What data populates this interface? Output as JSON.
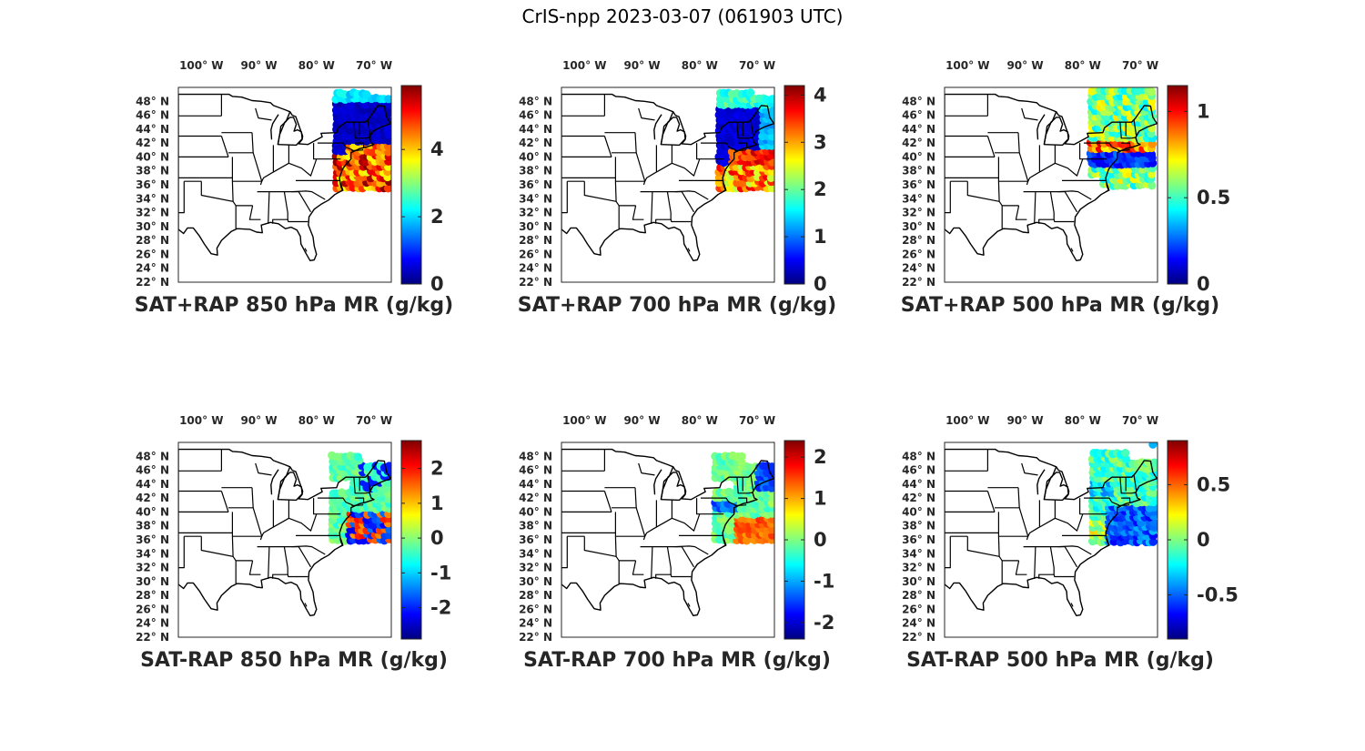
{
  "figure_title": "CrIS-npp 2023-03-07 (061903 UTC)",
  "lon_tick_labels": [
    "100° W",
    "90° W",
    "80° W",
    "70° W"
  ],
  "lat_tick_labels": [
    "48° N",
    "46° N",
    "44° N",
    "42° N",
    "40° N",
    "38° N",
    "36° N",
    "34° N",
    "32° N",
    "30° N",
    "28° N",
    "26° N",
    "24° N",
    "22° N"
  ],
  "lon_ticks": [
    -100,
    -90,
    -80,
    -70
  ],
  "lat_ticks": [
    48,
    46,
    44,
    42,
    40,
    38,
    36,
    34,
    32,
    30,
    28,
    26,
    24,
    22
  ],
  "map_extent": {
    "lon": [
      -104,
      -67
    ],
    "lat": [
      22,
      50
    ]
  },
  "colormap": "jet",
  "colors": {
    "land_outline": "#000000",
    "background": "#ffffff",
    "text": "#262626"
  },
  "chart_data": [
    {
      "type": "heatmap",
      "title": "SAT+RAP 850 hPa MR (g/kg)",
      "colorbar": {
        "range": [
          0,
          5.9
        ],
        "ticks": [
          0,
          2,
          4
        ],
        "tick_labels": [
          "0",
          "2",
          "4"
        ]
      }
    },
    {
      "type": "heatmap",
      "title": "SAT+RAP 700 hPa MR (g/kg)",
      "colorbar": {
        "range": [
          0,
          4.2
        ],
        "ticks": [
          0,
          1,
          2,
          3,
          4
        ],
        "tick_labels": [
          "0",
          "1",
          "2",
          "3",
          "4"
        ]
      }
    },
    {
      "type": "heatmap",
      "title": "SAT+RAP 500 hPa MR (g/kg)",
      "colorbar": {
        "range": [
          0,
          1.15
        ],
        "ticks": [
          0,
          0.5,
          1
        ],
        "tick_labels": [
          "0",
          "0.5",
          "1"
        ]
      }
    },
    {
      "type": "heatmap",
      "title": "SAT-RAP 850 hPa MR (g/kg)",
      "colorbar": {
        "range": [
          -2.9,
          2.8
        ],
        "ticks": [
          -2,
          -1,
          0,
          1,
          2
        ],
        "tick_labels": [
          "-2",
          "-1",
          "0",
          "1",
          "2"
        ]
      }
    },
    {
      "type": "heatmap",
      "title": "SAT-RAP 700 hPa MR (g/kg)",
      "colorbar": {
        "range": [
          -2.4,
          2.4
        ],
        "ticks": [
          -2,
          -1,
          0,
          1,
          2
        ],
        "tick_labels": [
          "-2",
          "-1",
          "0",
          "1",
          "2"
        ]
      }
    },
    {
      "type": "heatmap",
      "title": "SAT-RAP 500 hPa MR (g/kg)",
      "colorbar": {
        "range": [
          -0.9,
          0.9
        ],
        "ticks": [
          -0.5,
          0,
          0.5
        ],
        "tick_labels": [
          "-0.5",
          "0",
          "0.5"
        ]
      }
    }
  ]
}
